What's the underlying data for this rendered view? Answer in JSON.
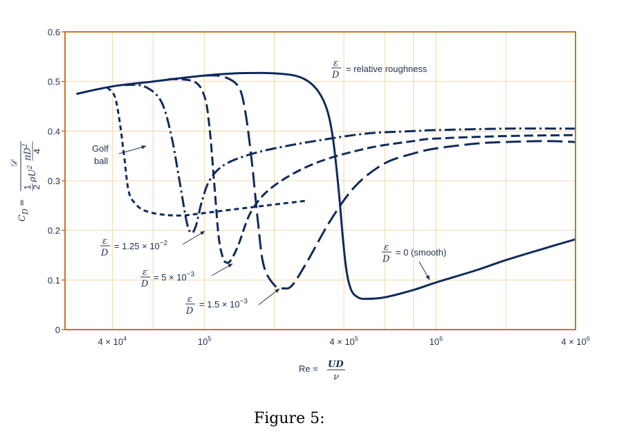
{
  "chart_data": {
    "type": "line",
    "caption": "Figure 5:",
    "x_scale": "log",
    "xlim": [
      25000,
      4000000
    ],
    "ylim": [
      0,
      0.6
    ],
    "grid": true,
    "xlabel": {
      "left": "Re =",
      "num": "UD",
      "den": "ν"
    },
    "ylabel": {
      "left": "C",
      "sub": "D",
      "eq": "=",
      "num": "𝒟",
      "den_frac_num": "1",
      "den_frac_den": "2",
      "den_mid": "ρU",
      "den_sup": "2",
      "den_pi": "πD",
      "den_pi_sup": "2",
      "den_pi_den": "4"
    },
    "y_ticks": [
      {
        "v": 0,
        "label": "0"
      },
      {
        "v": 0.1,
        "label": "0.1"
      },
      {
        "v": 0.2,
        "label": "0.2"
      },
      {
        "v": 0.3,
        "label": "0.3"
      },
      {
        "v": 0.4,
        "label": "0.4"
      },
      {
        "v": 0.5,
        "label": "0.5"
      },
      {
        "v": 0.6,
        "label": "0.6"
      }
    ],
    "x_ticks": [
      {
        "v": 40000,
        "base": "4 × 10",
        "exp": "4"
      },
      {
        "v": 100000,
        "base": "10",
        "exp": "5"
      },
      {
        "v": 400000,
        "base": "4 × 10",
        "exp": "5"
      },
      {
        "v": 1000000,
        "base": "10",
        "exp": "6"
      },
      {
        "v": 4000000,
        "base": "4 × 10",
        "exp": "6"
      }
    ],
    "x_grid": [
      40000,
      60000,
      100000,
      200000,
      400000,
      600000,
      800000,
      1000000,
      2000000,
      4000000
    ],
    "y_grid": [
      0.1,
      0.2,
      0.3,
      0.4,
      0.5,
      0.6
    ],
    "series": [
      {
        "name": "ε/D = 0 (smooth)",
        "dash": "solid",
        "x": [
          28000,
          40000,
          60000,
          100000,
          150000,
          220000,
          270000,
          310000,
          340000,
          360000,
          380000,
          395000,
          410000,
          430000,
          460000,
          500000,
          600000,
          800000,
          1000000,
          1500000,
          2000000,
          3000000,
          4000000
        ],
        "y": [
          0.475,
          0.49,
          0.5,
          0.512,
          0.517,
          0.515,
          0.505,
          0.48,
          0.44,
          0.38,
          0.28,
          0.19,
          0.12,
          0.08,
          0.065,
          0.062,
          0.065,
          0.08,
          0.095,
          0.12,
          0.14,
          0.165,
          0.182
        ]
      },
      {
        "name": "ε/D = 1.5 × 10⁻³",
        "dash": "long",
        "x": [
          100000,
          120000,
          140000,
          150000,
          160000,
          170000,
          180000,
          200000,
          220000,
          240000,
          280000,
          350000,
          450000,
          600000,
          800000,
          1000000,
          1500000,
          2000000,
          3000000,
          4000000
        ],
        "y": [
          0.512,
          0.51,
          0.49,
          0.44,
          0.34,
          0.22,
          0.13,
          0.09,
          0.083,
          0.09,
          0.14,
          0.22,
          0.29,
          0.335,
          0.355,
          0.365,
          0.375,
          0.378,
          0.38,
          0.378
        ]
      },
      {
        "name": "ε/D = 5 × 10⁻³",
        "dash": "medium",
        "x": [
          70000,
          90000,
          100000,
          105000,
          110000,
          115000,
          120000,
          125000,
          130000,
          140000,
          160000,
          200000,
          300000,
          500000,
          800000,
          1000000,
          2000000,
          4000000
        ],
        "y": [
          0.505,
          0.5,
          0.47,
          0.41,
          0.3,
          0.19,
          0.145,
          0.135,
          0.14,
          0.17,
          0.24,
          0.29,
          0.335,
          0.365,
          0.38,
          0.385,
          0.39,
          0.392
        ]
      },
      {
        "name": "ε/D = 1.25 × 10⁻²",
        "dash": "dashdot",
        "x": [
          45000,
          55000,
          65000,
          72000,
          78000,
          84000,
          88000,
          92000,
          97000,
          105000,
          120000,
          150000,
          200000,
          300000,
          500000,
          800000,
          1000000,
          2000000,
          4000000
        ],
        "y": [
          0.493,
          0.49,
          0.46,
          0.39,
          0.3,
          0.215,
          0.195,
          0.21,
          0.255,
          0.3,
          0.33,
          0.35,
          0.365,
          0.38,
          0.395,
          0.4,
          0.402,
          0.405,
          0.405
        ]
      },
      {
        "name": "Golf ball",
        "dash": "short",
        "x": [
          38000,
          41000,
          43000,
          45000,
          47000,
          50000,
          55000,
          65000,
          80000,
          100000,
          150000,
          200000,
          280000
        ],
        "y": [
          0.488,
          0.47,
          0.42,
          0.35,
          0.28,
          0.255,
          0.24,
          0.232,
          0.23,
          0.235,
          0.245,
          0.252,
          0.26
        ]
      }
    ],
    "annotations": {
      "legend_title": "= relative roughness",
      "legend_eps": "ε",
      "legend_d": "D",
      "golf_line1": "Golf",
      "golf_line2": "ball",
      "smooth_value": "= 0 (smooth)",
      "r1_value": "= 1.25 × 10",
      "r1_exp": "−2",
      "r2_value": "= 5 × 10",
      "r2_exp": "−3",
      "r3_value": "= 1.5 × 10",
      "r3_exp": "−3",
      "eps": "ε",
      "d": "D"
    },
    "colors": {
      "line": "#0f2a5c",
      "text": "#1f2f4f",
      "axis": "#c8741e",
      "grid": "#f0d6a8"
    }
  }
}
